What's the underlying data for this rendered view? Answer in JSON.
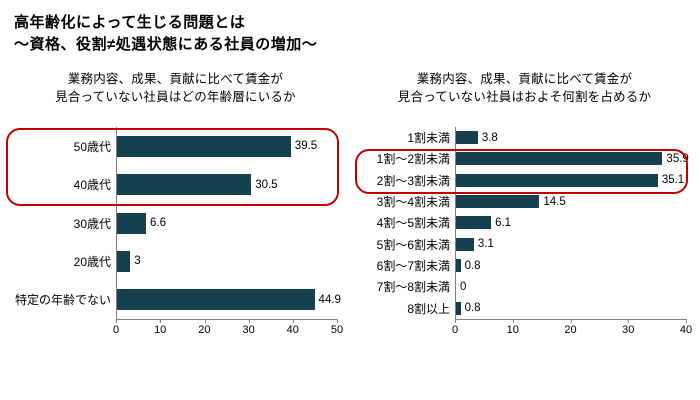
{
  "header": {
    "title_line1": "高年齢化によって生じる問題とは",
    "title_line2": "～資格、役割≠処遇状態にある社員の増加～"
  },
  "colors": {
    "bar": "#17404E",
    "highlight": "#C00000",
    "axis": "#7f7f7f"
  },
  "chart_data": [
    {
      "type": "bar",
      "orientation": "horizontal",
      "title_line1": "業務内容、成果、貢献に比べて賃金が",
      "title_line2": "見合っていない社員はどの年齢層にいるか",
      "categories": [
        "50歳代",
        "40歳代",
        "30歳代",
        "20歳代",
        "特定の年齢でない"
      ],
      "values": [
        39.5,
        30.5,
        6.6,
        3,
        44.9
      ],
      "value_labels": [
        "39.5",
        "30.5",
        "6.6",
        "3",
        "44.9"
      ],
      "xlim": [
        0,
        50
      ],
      "xstep": 10,
      "grid": false,
      "legend": false,
      "highlight_rows": [
        0,
        1
      ]
    },
    {
      "type": "bar",
      "orientation": "horizontal",
      "title_line1": "業務内容、成果、貢献に比べて賃金が",
      "title_line2": "見合っていない社員はおよそ何割を占めるか",
      "categories": [
        "1割未満",
        "1割～2割未満",
        "2割～3割未満",
        "3割～4割未満",
        "4割～5割未満",
        "5割～6割未満",
        "6割～7割未満",
        "7割～8割未満",
        "8割以上"
      ],
      "values": [
        3.8,
        35.9,
        35.1,
        14.5,
        6.1,
        3.1,
        0.8,
        0,
        0.8
      ],
      "value_labels": [
        "3.8",
        "35.9",
        "35.1",
        "14.5",
        "6.1",
        "3.1",
        "0.8",
        "0",
        "0.8"
      ],
      "xlim": [
        0,
        40
      ],
      "xstep": 10,
      "grid": false,
      "legend": false,
      "highlight_rows": [
        1,
        2
      ]
    }
  ]
}
